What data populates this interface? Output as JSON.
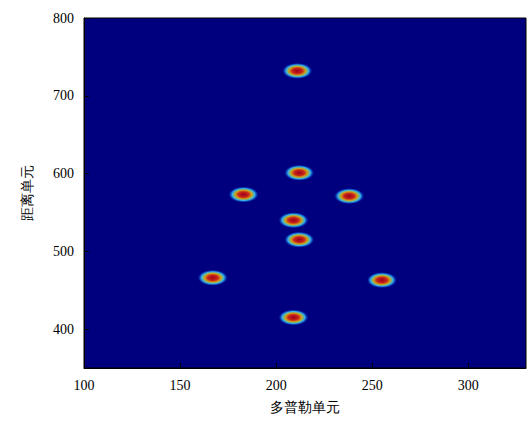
{
  "chart_data": {
    "type": "scatter",
    "x_label": "多普勒单元",
    "y_label": "距离单元",
    "x": [
      211,
      212,
      183,
      238,
      209,
      212,
      167,
      255,
      209
    ],
    "y": [
      732,
      601,
      573,
      571,
      540,
      515,
      466,
      463,
      415
    ],
    "color": "#c00000",
    "xlim": [
      100,
      330
    ],
    "xticks": [
      100,
      150,
      200,
      250,
      300
    ],
    "ylim": [
      350,
      800
    ],
    "yticks": [
      400,
      500,
      600,
      700,
      800
    ],
    "grid": false
  }
}
